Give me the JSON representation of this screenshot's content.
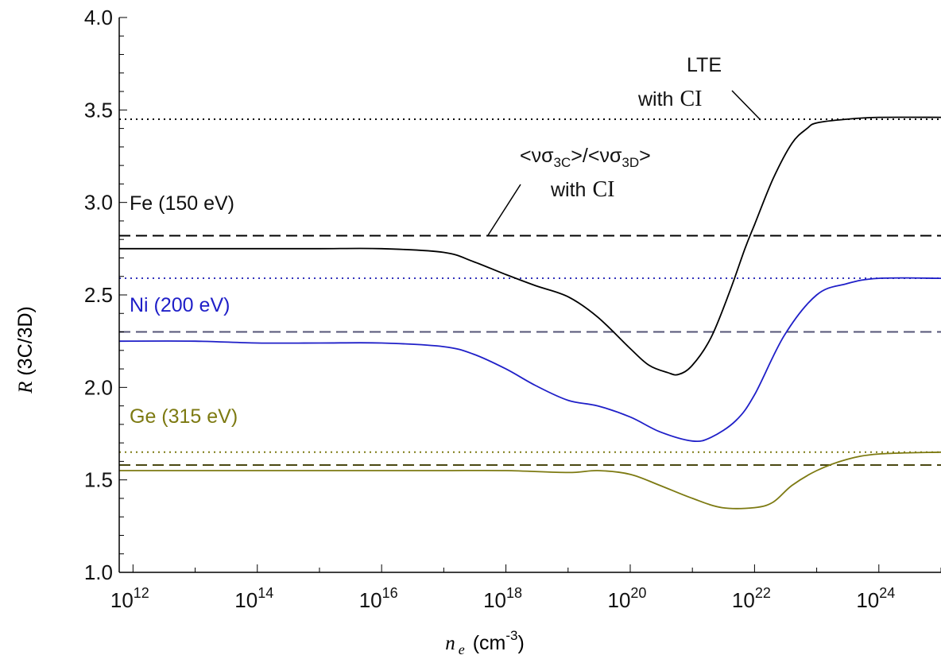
{
  "chart_data": {
    "type": "line",
    "x_scale": "log",
    "xlim": [
      600000000000.0,
      1e+25
    ],
    "ylim": [
      1.0,
      4.0
    ],
    "grid": false,
    "legend": "none",
    "xlabel": {
      "main": "n",
      "sub": "e",
      "unit": "(cm",
      "exp": "-3",
      "close": ")"
    },
    "ylabel": {
      "main": "R",
      "rest": " (3C/3D)"
    },
    "y_ticks": [
      {
        "value": 1.0,
        "label": "1.0"
      },
      {
        "value": 1.5,
        "label": "1.5"
      },
      {
        "value": 2.0,
        "label": "2.0"
      },
      {
        "value": 2.5,
        "label": "2.5"
      },
      {
        "value": 3.0,
        "label": "3.0"
      },
      {
        "value": 3.5,
        "label": "3.5"
      },
      {
        "value": 4.0,
        "label": "4.0"
      }
    ],
    "x_ticks": [
      {
        "value": 1000000000000.0,
        "base": "10",
        "exp": "12"
      },
      {
        "value": 100000000000000.0,
        "base": "10",
        "exp": "14"
      },
      {
        "value": 1e+16,
        "base": "10",
        "exp": "16"
      },
      {
        "value": 1e+18,
        "base": "10",
        "exp": "18"
      },
      {
        "value": 1e+20,
        "base": "10",
        "exp": "20"
      },
      {
        "value": 1e+22,
        "base": "10",
        "exp": "22"
      },
      {
        "value": 1e+24,
        "base": "10",
        "exp": "24"
      }
    ],
    "series": [
      {
        "name": "Fe (150 eV)",
        "color": "#000000",
        "x": [
          600000000000.0,
          10000000000000.0,
          100000000000000.0,
          1000000000000000.0,
          1e+16,
          1e+17,
          3e+17,
          1e+18,
          3e+18,
          1e+19,
          3e+19,
          1e+20,
          2e+20,
          4e+20,
          6e+20,
          1e+21,
          2e+21,
          4e+21,
          7e+21,
          1e+22,
          2e+22,
          4e+22,
          7e+22,
          1e+23,
          3e+23,
          1e+24,
          1e+25
        ],
        "y": [
          2.75,
          2.75,
          2.75,
          2.75,
          2.75,
          2.73,
          2.68,
          2.61,
          2.55,
          2.49,
          2.38,
          2.21,
          2.12,
          2.08,
          2.07,
          2.12,
          2.27,
          2.52,
          2.75,
          2.88,
          3.13,
          3.32,
          3.4,
          3.43,
          3.45,
          3.46,
          3.46
        ]
      },
      {
        "name": "Ni (200 eV)",
        "color": "#1f1fc8",
        "x": [
          600000000000.0,
          10000000000000.0,
          100000000000000.0,
          1000000000000000.0,
          1e+16,
          1e+17,
          3e+17,
          1e+18,
          3e+18,
          1e+19,
          3e+19,
          1e+20,
          3e+20,
          1e+21,
          2e+21,
          5e+21,
          1e+22,
          3e+22,
          1e+23,
          3e+23,
          1e+24,
          1e+25
        ],
        "y": [
          2.25,
          2.25,
          2.24,
          2.24,
          2.24,
          2.22,
          2.18,
          2.1,
          2.01,
          1.93,
          1.9,
          1.84,
          1.76,
          1.71,
          1.73,
          1.82,
          1.96,
          2.28,
          2.5,
          2.56,
          2.59,
          2.59
        ]
      },
      {
        "name": "Ge (315 eV)",
        "color": "#7d7a12",
        "x": [
          600000000000.0,
          10000000000000.0,
          100000000000000.0,
          1000000000000000.0,
          1e+16,
          1e+17,
          1e+18,
          1e+19,
          3e+19,
          1e+20,
          3e+20,
          1e+21,
          3e+21,
          1e+22,
          2e+22,
          4e+22,
          1e+23,
          3e+23,
          1e+24,
          1e+25
        ],
        "y": [
          1.55,
          1.55,
          1.55,
          1.55,
          1.55,
          1.55,
          1.55,
          1.54,
          1.55,
          1.53,
          1.47,
          1.4,
          1.35,
          1.35,
          1.38,
          1.47,
          1.55,
          1.61,
          1.64,
          1.65
        ]
      }
    ],
    "reference_lines": [
      {
        "y": 3.45,
        "style": "dotted",
        "color": "#000000"
      },
      {
        "y": 2.82,
        "style": "dashed",
        "color": "#000000"
      },
      {
        "y": 2.59,
        "style": "dotted",
        "color": "#3333bb"
      },
      {
        "y": 2.3,
        "style": "dashed",
        "color": "#555577"
      },
      {
        "y": 1.65,
        "style": "dotted",
        "color": "#7d7a12"
      },
      {
        "y": 1.58,
        "style": "dashed",
        "color": "#4a4812"
      }
    ],
    "annotations": {
      "fe": "Fe (150 eV)",
      "ni": "Ni (200 eV)",
      "ge": "Ge (315 eV)",
      "lte": "LTE",
      "with": "with",
      "ci": "CI",
      "ratio": {
        "lt": "<",
        "nu": "ν",
        "sigma": "σ",
        "sub_a": "3C",
        "sub_b": "3D",
        "gt": ">",
        "slash": "/"
      }
    }
  }
}
